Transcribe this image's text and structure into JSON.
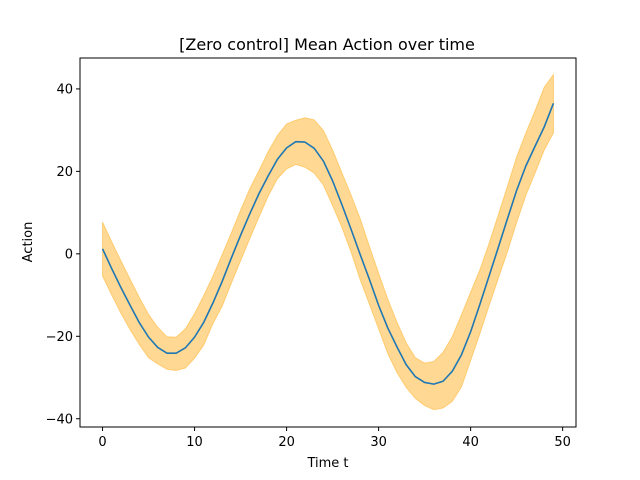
{
  "chart_data": {
    "type": "line",
    "title": "[Zero control] Mean Action over time",
    "xlabel": "Time t",
    "ylabel": "Action",
    "xlim": [
      -2.45,
      51.45
    ],
    "ylim": [
      -42,
      47.5
    ],
    "xticks": [
      0,
      10,
      20,
      30,
      40,
      50
    ],
    "yticks": [
      -40,
      -20,
      0,
      20,
      40
    ],
    "xtick_labels": [
      "0",
      "10",
      "20",
      "30",
      "40",
      "50"
    ],
    "ytick_labels": [
      "−40",
      "−20",
      "0",
      "20",
      "40"
    ],
    "grid": false,
    "x": [
      0,
      1,
      2,
      3,
      4,
      5,
      6,
      7,
      8,
      9,
      10,
      11,
      12,
      13,
      14,
      15,
      16,
      17,
      18,
      19,
      20,
      21,
      22,
      23,
      24,
      25,
      26,
      27,
      28,
      29,
      30,
      31,
      32,
      33,
      34,
      35,
      36,
      37,
      38,
      39,
      40,
      41,
      42,
      43,
      44,
      45,
      46,
      47,
      48,
      49
    ],
    "series": [
      {
        "color": "#1f77b4",
        "values": [
          1.2,
          -3.6,
          -8.2,
          -12.5,
          -16.7,
          -20.2,
          -22.7,
          -24.1,
          -24.1,
          -22.8,
          -20.2,
          -16.6,
          -11.9,
          -6.7,
          -1.0,
          4.5,
          9.7,
          14.6,
          18.9,
          22.9,
          25.7,
          27.2,
          27.1,
          25.6,
          22.5,
          17.7,
          12.0,
          6.0,
          -0.2,
          -6.2,
          -12.5,
          -18.0,
          -22.6,
          -26.9,
          -29.8,
          -31.2,
          -31.6,
          -30.9,
          -28.5,
          -24.5,
          -18.9,
          -12.3,
          -5.4,
          1.5,
          8.5,
          15.4,
          21.3,
          26.1,
          30.8,
          36.5
        ]
      }
    ],
    "band": {
      "color": "#ffa500",
      "lower": [
        -5.4,
        -10.0,
        -14.4,
        -18.4,
        -22.0,
        -25.2,
        -26.7,
        -28.0,
        -28.3,
        -27.7,
        -25.3,
        -22.1,
        -16.9,
        -12.7,
        -7.1,
        -1.7,
        3.7,
        8.9,
        14.0,
        18.2,
        20.6,
        21.7,
        21.0,
        19.6,
        16.7,
        11.7,
        6.5,
        0.5,
        -6.3,
        -12.2,
        -18.2,
        -24.2,
        -28.8,
        -32.4,
        -35.1,
        -36.8,
        -37.8,
        -37.4,
        -35.8,
        -32.3,
        -25.9,
        -19.4,
        -12.6,
        -6.0,
        0.5,
        7.6,
        14.2,
        19.6,
        25.2,
        29.3
      ],
      "upper": [
        7.7,
        2.9,
        -1.7,
        -6.2,
        -10.6,
        -14.7,
        -17.8,
        -20.1,
        -20.2,
        -18.2,
        -14.5,
        -10.1,
        -5.4,
        -0.2,
        5.1,
        10.6,
        15.8,
        20.2,
        24.8,
        28.7,
        31.5,
        32.4,
        33.0,
        32.5,
        29.9,
        25.2,
        19.7,
        14.3,
        8.5,
        1.8,
        -4.7,
        -11.0,
        -16.6,
        -21.6,
        -25.2,
        -26.5,
        -26.1,
        -23.9,
        -20.1,
        -14.8,
        -9.3,
        -3.9,
        2.5,
        9.4,
        16.4,
        23.5,
        29.3,
        34.7,
        40.4,
        43.5
      ]
    }
  }
}
